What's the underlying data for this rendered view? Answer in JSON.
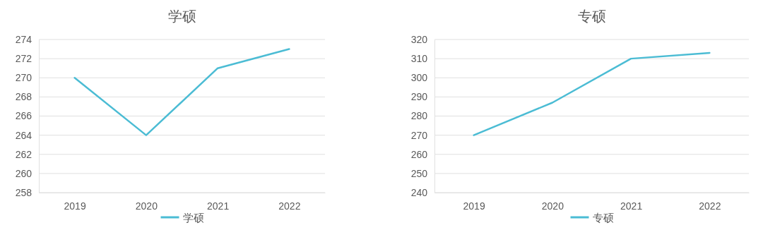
{
  "chart_data": [
    {
      "type": "line",
      "title": "学硕",
      "categories": [
        "2019",
        "2020",
        "2021",
        "2022"
      ],
      "series": [
        {
          "name": "学硕",
          "color": "#4bbcd4",
          "values": [
            270,
            264,
            271,
            273
          ]
        }
      ],
      "ylim": [
        258,
        274
      ],
      "yticks": [
        258,
        260,
        262,
        264,
        266,
        268,
        270,
        272,
        274
      ],
      "grid": "y",
      "legend": "bottom",
      "marker": "none",
      "line_style": "solid"
    },
    {
      "type": "line",
      "title": "专硕",
      "categories": [
        "2019",
        "2020",
        "2021",
        "2022"
      ],
      "series": [
        {
          "name": "专硕",
          "color": "#4bbcd4",
          "values": [
            270,
            287,
            310,
            313
          ]
        }
      ],
      "ylim": [
        240,
        320
      ],
      "yticks": [
        240,
        250,
        260,
        270,
        280,
        290,
        300,
        310,
        320
      ],
      "grid": "y",
      "legend": "bottom",
      "marker": "none",
      "line_style": "solid"
    }
  ]
}
